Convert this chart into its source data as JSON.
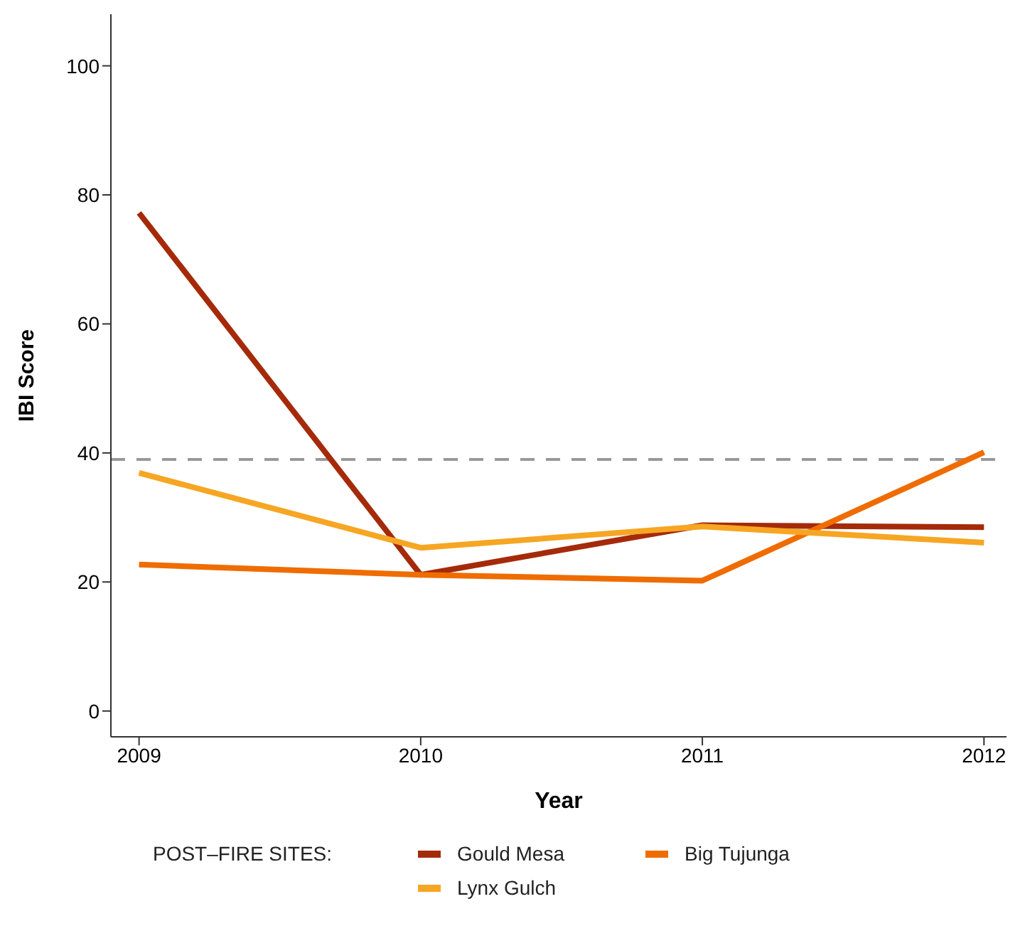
{
  "chart_data": {
    "type": "line",
    "xlabel": "Year",
    "ylabel": "IBI Score",
    "legend_title": "POST–FIRE SITES:",
    "x": [
      2009,
      2010,
      2011,
      2012
    ],
    "xlim": [
      2008.9,
      2012.08
    ],
    "xticks": [
      2009,
      2010,
      2011,
      2012
    ],
    "ylim": [
      -4,
      108
    ],
    "yticks": [
      0,
      20,
      40,
      60,
      80,
      100
    ],
    "grid": false,
    "legend": "bottom",
    "marker": "none",
    "line_style": "solid",
    "ref_lines": [
      {
        "axis": "y",
        "value": 39,
        "color": "#999999",
        "line_style": "dashed"
      }
    ],
    "series": [
      {
        "name": "Gould Mesa",
        "color": "#a52a0a",
        "values": [
          77.2,
          21.1,
          28.8,
          28.5
        ]
      },
      {
        "name": "Big Tujunga",
        "color": "#ef6c00",
        "values": [
          22.7,
          21.1,
          20.2,
          40.1
        ]
      },
      {
        "name": "Lynx Gulch",
        "color": "#f6a623",
        "values": [
          36.9,
          25.3,
          28.6,
          26.1
        ]
      }
    ]
  }
}
